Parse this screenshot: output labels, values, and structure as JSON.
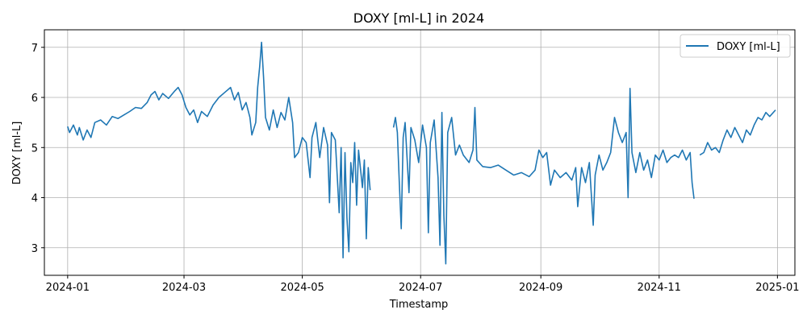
{
  "chart_data": {
    "type": "line",
    "title": "DOXY [ml-L] in 2024",
    "xlabel": "Timestamp",
    "ylabel": "DOXY [ml-L]",
    "xlim": [
      "2023-12-20",
      "2025-01-10"
    ],
    "ylim": [
      2.45,
      7.35
    ],
    "grid": true,
    "legend_position": "top-right",
    "x_ticks": [
      "2024-01",
      "2024-03",
      "2024-05",
      "2024-07",
      "2024-09",
      "2024-11",
      "2025-01"
    ],
    "y_ticks": [
      3,
      4,
      5,
      6,
      7
    ],
    "series": [
      {
        "name": "DOXY [ml-L]",
        "color": "#1f77b4",
        "segments": [
          [
            [
              "2024-01-01",
              5.42
            ],
            [
              "2024-01-02",
              5.3
            ],
            [
              "2024-01-04",
              5.45
            ],
            [
              "2024-01-06",
              5.25
            ],
            [
              "2024-01-07",
              5.4
            ],
            [
              "2024-01-09",
              5.15
            ],
            [
              "2024-01-11",
              5.35
            ],
            [
              "2024-01-13",
              5.2
            ],
            [
              "2024-01-15",
              5.5
            ],
            [
              "2024-01-18",
              5.55
            ],
            [
              "2024-01-21",
              5.45
            ],
            [
              "2024-01-24",
              5.62
            ],
            [
              "2024-01-27",
              5.58
            ],
            [
              "2024-01-30",
              5.65
            ],
            [
              "2024-02-02",
              5.72
            ],
            [
              "2024-02-05",
              5.8
            ],
            [
              "2024-02-08",
              5.78
            ],
            [
              "2024-02-11",
              5.9
            ],
            [
              "2024-02-13",
              6.05
            ],
            [
              "2024-02-15",
              6.12
            ],
            [
              "2024-02-17",
              5.95
            ],
            [
              "2024-02-19",
              6.08
            ],
            [
              "2024-02-22",
              5.98
            ],
            [
              "2024-02-25",
              6.12
            ],
            [
              "2024-02-27",
              6.2
            ],
            [
              "2024-02-29",
              6.05
            ],
            [
              "2024-03-02",
              5.8
            ],
            [
              "2024-03-04",
              5.65
            ],
            [
              "2024-03-06",
              5.75
            ],
            [
              "2024-03-08",
              5.5
            ],
            [
              "2024-03-10",
              5.72
            ],
            [
              "2024-03-13",
              5.62
            ],
            [
              "2024-03-16",
              5.85
            ],
            [
              "2024-03-19",
              6.0
            ],
            [
              "2024-03-22",
              6.1
            ],
            [
              "2024-03-25",
              6.2
            ],
            [
              "2024-03-27",
              5.95
            ],
            [
              "2024-03-29",
              6.1
            ],
            [
              "2024-03-31",
              5.75
            ],
            [
              "2024-04-02",
              5.9
            ],
            [
              "2024-04-04",
              5.6
            ],
            [
              "2024-04-05",
              5.25
            ],
            [
              "2024-04-07",
              5.5
            ],
            [
              "2024-04-08",
              6.2
            ],
            [
              "2024-04-09",
              6.6
            ],
            [
              "2024-04-10",
              7.1
            ],
            [
              "2024-04-11",
              6.4
            ],
            [
              "2024-04-12",
              5.6
            ],
            [
              "2024-04-14",
              5.35
            ],
            [
              "2024-04-16",
              5.75
            ],
            [
              "2024-04-18",
              5.4
            ],
            [
              "2024-04-20",
              5.7
            ],
            [
              "2024-04-22",
              5.55
            ],
            [
              "2024-04-24",
              6.0
            ],
            [
              "2024-04-26",
              5.5
            ],
            [
              "2024-04-27",
              4.8
            ],
            [
              "2024-04-29",
              4.9
            ],
            [
              "2024-05-01",
              5.2
            ],
            [
              "2024-05-03",
              5.1
            ],
            [
              "2024-05-05",
              4.4
            ],
            [
              "2024-05-06",
              5.2
            ],
            [
              "2024-05-08",
              5.5
            ],
            [
              "2024-05-10",
              4.8
            ],
            [
              "2024-05-12",
              5.4
            ],
            [
              "2024-05-14",
              5.05
            ],
            [
              "2024-05-15",
              3.9
            ],
            [
              "2024-05-16",
              5.3
            ],
            [
              "2024-05-18",
              5.15
            ],
            [
              "2024-05-20",
              3.7
            ],
            [
              "2024-05-21",
              5.0
            ],
            [
              "2024-05-22",
              2.8
            ],
            [
              "2024-05-23",
              4.9
            ],
            [
              "2024-05-24",
              3.6
            ],
            [
              "2024-05-25",
              2.92
            ],
            [
              "2024-05-26",
              4.7
            ],
            [
              "2024-05-27",
              4.3
            ],
            [
              "2024-05-28",
              5.1
            ],
            [
              "2024-05-29",
              3.85
            ],
            [
              "2024-05-30",
              4.95
            ],
            [
              "2024-06-01",
              4.2
            ],
            [
              "2024-06-02",
              4.75
            ],
            [
              "2024-06-03",
              3.18
            ],
            [
              "2024-06-04",
              4.6
            ],
            [
              "2024-06-05",
              4.15
            ]
          ],
          [
            [
              "2024-06-17",
              5.4
            ],
            [
              "2024-06-18",
              5.6
            ],
            [
              "2024-06-19",
              5.3
            ],
            [
              "2024-06-20",
              4.3
            ],
            [
              "2024-06-21",
              3.38
            ],
            [
              "2024-06-22",
              5.2
            ],
            [
              "2024-06-23",
              5.5
            ],
            [
              "2024-06-25",
              4.1
            ],
            [
              "2024-06-26",
              5.4
            ],
            [
              "2024-06-28",
              5.15
            ],
            [
              "2024-06-30",
              4.7
            ],
            [
              "2024-07-02",
              5.45
            ],
            [
              "2024-07-04",
              5.0
            ],
            [
              "2024-07-05",
              3.3
            ],
            [
              "2024-07-06",
              5.1
            ],
            [
              "2024-07-08",
              5.55
            ],
            [
              "2024-07-10",
              4.4
            ],
            [
              "2024-07-11",
              3.05
            ],
            [
              "2024-07-12",
              5.7
            ],
            [
              "2024-07-13",
              3.65
            ],
            [
              "2024-07-14",
              2.68
            ],
            [
              "2024-07-15",
              5.3
            ],
            [
              "2024-07-17",
              5.6
            ],
            [
              "2024-07-19",
              4.85
            ],
            [
              "2024-07-21",
              5.05
            ],
            [
              "2024-07-23",
              4.85
            ],
            [
              "2024-07-26",
              4.7
            ],
            [
              "2024-07-28",
              4.95
            ],
            [
              "2024-07-29",
              5.8
            ],
            [
              "2024-07-30",
              4.75
            ],
            [
              "2024-08-02",
              4.62
            ],
            [
              "2024-08-06",
              4.6
            ],
            [
              "2024-08-10",
              4.65
            ],
            [
              "2024-08-14",
              4.55
            ],
            [
              "2024-08-18",
              4.45
            ],
            [
              "2024-08-22",
              4.5
            ],
            [
              "2024-08-26",
              4.42
            ],
            [
              "2024-08-29",
              4.55
            ],
            [
              "2024-08-31",
              4.95
            ],
            [
              "2024-09-02",
              4.8
            ],
            [
              "2024-09-04",
              4.9
            ],
            [
              "2024-09-06",
              4.25
            ],
            [
              "2024-09-08",
              4.55
            ],
            [
              "2024-09-11",
              4.4
            ],
            [
              "2024-09-14",
              4.5
            ],
            [
              "2024-09-17",
              4.35
            ],
            [
              "2024-09-19",
              4.6
            ],
            [
              "2024-09-20",
              3.82
            ],
            [
              "2024-09-22",
              4.6
            ],
            [
              "2024-09-24",
              4.3
            ],
            [
              "2024-09-26",
              4.7
            ],
            [
              "2024-09-28",
              3.45
            ],
            [
              "2024-09-29",
              4.45
            ],
            [
              "2024-10-01",
              4.85
            ],
            [
              "2024-10-03",
              4.55
            ],
            [
              "2024-10-05",
              4.7
            ],
            [
              "2024-10-07",
              4.9
            ],
            [
              "2024-10-09",
              5.6
            ],
            [
              "2024-10-11",
              5.3
            ],
            [
              "2024-10-13",
              5.1
            ],
            [
              "2024-10-15",
              5.3
            ],
            [
              "2024-10-16",
              4.0
            ],
            [
              "2024-10-17",
              6.18
            ],
            [
              "2024-10-18",
              4.9
            ],
            [
              "2024-10-20",
              4.5
            ],
            [
              "2024-10-22",
              4.9
            ],
            [
              "2024-10-24",
              4.55
            ],
            [
              "2024-10-26",
              4.75
            ],
            [
              "2024-10-28",
              4.4
            ],
            [
              "2024-10-30",
              4.85
            ],
            [
              "2024-11-01",
              4.75
            ],
            [
              "2024-11-03",
              4.95
            ],
            [
              "2024-11-05",
              4.7
            ],
            [
              "2024-11-07",
              4.8
            ],
            [
              "2024-11-09",
              4.85
            ],
            [
              "2024-11-11",
              4.8
            ],
            [
              "2024-11-13",
              4.95
            ],
            [
              "2024-11-15",
              4.75
            ],
            [
              "2024-11-17",
              4.9
            ],
            [
              "2024-11-18",
              4.3
            ],
            [
              "2024-11-19",
              3.98
            ]
          ],
          [
            [
              "2024-11-22",
              4.85
            ],
            [
              "2024-11-24",
              4.9
            ],
            [
              "2024-11-26",
              5.1
            ],
            [
              "2024-11-28",
              4.95
            ],
            [
              "2024-11-30",
              5.0
            ],
            [
              "2024-12-02",
              4.9
            ],
            [
              "2024-12-04",
              5.15
            ],
            [
              "2024-12-06",
              5.35
            ],
            [
              "2024-12-08",
              5.2
            ],
            [
              "2024-12-10",
              5.4
            ],
            [
              "2024-12-12",
              5.25
            ],
            [
              "2024-12-14",
              5.1
            ],
            [
              "2024-12-16",
              5.35
            ],
            [
              "2024-12-18",
              5.25
            ],
            [
              "2024-12-20",
              5.45
            ],
            [
              "2024-12-22",
              5.6
            ],
            [
              "2024-12-24",
              5.55
            ],
            [
              "2024-12-26",
              5.7
            ],
            [
              "2024-12-28",
              5.62
            ],
            [
              "2024-12-31",
              5.75
            ]
          ]
        ]
      }
    ]
  }
}
